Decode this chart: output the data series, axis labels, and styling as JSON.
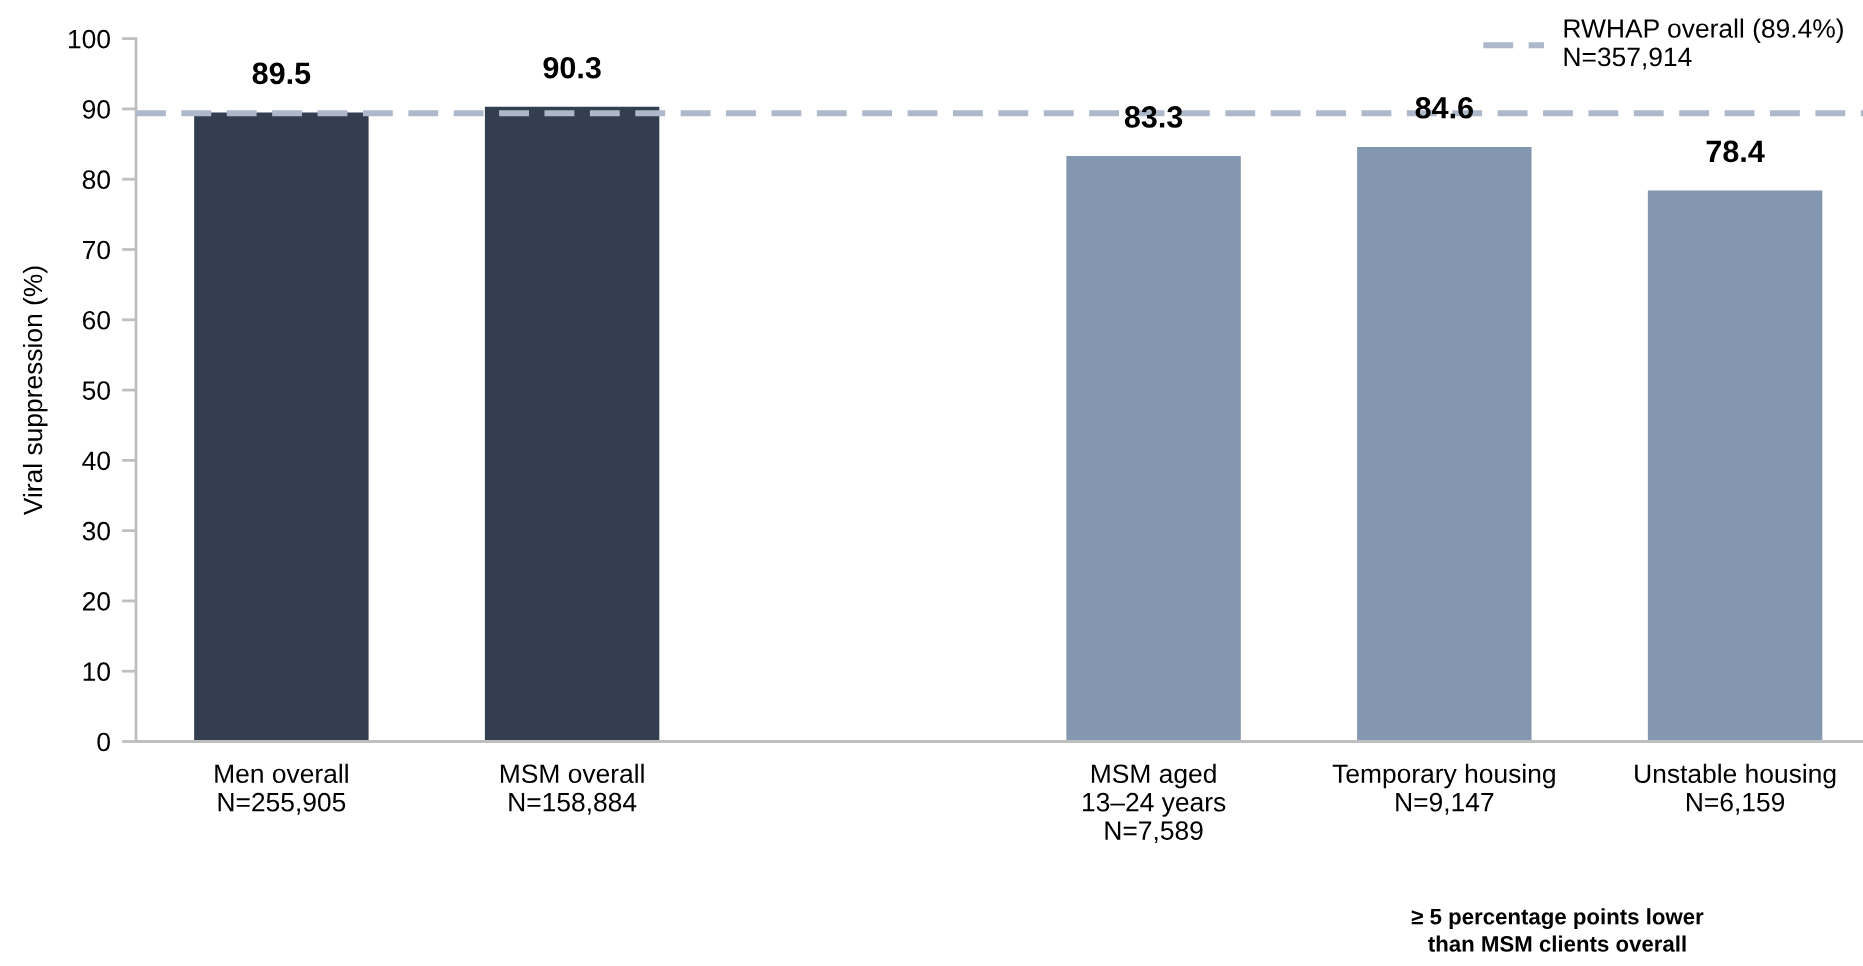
{
  "chart_data": {
    "type": "bar",
    "ylabel": "Viral suppression (%)",
    "categories": [
      "Men overall\nN=255,905",
      "MSM overall\nN=158,884",
      null,
      "MSM aged\n13–24 years\nN=7,589",
      "Temporary housing\nN=9,147",
      "Unstable housing\nN=6,159"
    ],
    "values": [
      89.5,
      90.3,
      null,
      83.3,
      84.6,
      78.4
    ],
    "colors": [
      "#333f50",
      "#333f50",
      null,
      "#8497b0",
      "#8497b0",
      "#8497b0"
    ],
    "ylim": [
      0,
      100
    ],
    "yticks": [
      0,
      10,
      20,
      30,
      40,
      50,
      60,
      70,
      80,
      90,
      100
    ],
    "data_labels": true,
    "grid": false,
    "legend": "top right",
    "ref_lines": [
      {
        "axis": "y",
        "value": 89.4,
        "label": "RWHAP overall (89.4%)\nN=357,914",
        "color": "#adb9ca",
        "line_style": "dashed"
      }
    ],
    "annotations": [
      "≥ 5 percentage points lower\nthan MSM clients overall"
    ]
  }
}
